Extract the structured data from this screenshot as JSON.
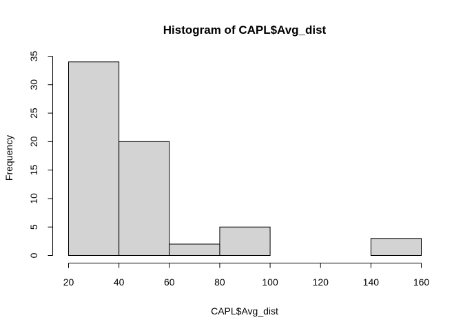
{
  "chart_data": {
    "type": "bar",
    "title": "Histogram of CAPL$Avg_dist",
    "xlabel": "CAPL$Avg_dist",
    "ylabel": "Frequency",
    "bins": [
      {
        "start": 20,
        "end": 40,
        "count": 34
      },
      {
        "start": 40,
        "end": 60,
        "count": 20
      },
      {
        "start": 60,
        "end": 80,
        "count": 2
      },
      {
        "start": 80,
        "end": 100,
        "count": 5
      },
      {
        "start": 100,
        "end": 120,
        "count": 0
      },
      {
        "start": 120,
        "end": 140,
        "count": 0
      },
      {
        "start": 140,
        "end": 160,
        "count": 3
      }
    ],
    "xlim": [
      20,
      160
    ],
    "ylim": [
      0,
      35
    ],
    "xticks": [
      20,
      40,
      60,
      80,
      100,
      120,
      140,
      160
    ],
    "yticks": [
      0,
      5,
      10,
      15,
      20,
      25,
      30,
      35
    ],
    "grid": false,
    "legend": "none",
    "bar_fill": "#d3d3d3",
    "bar_stroke": "#000000"
  }
}
